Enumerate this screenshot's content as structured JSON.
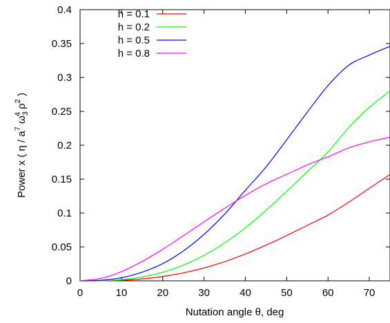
{
  "chart_data": {
    "type": "line",
    "title": "",
    "xlabel": "Nutation angle θ, deg",
    "ylabel_parts": {
      "prefix": "Power x ( η / a",
      "sup1": "7",
      "omega": " ω",
      "sub": "3",
      "sup2": "4",
      "rho": " ρ",
      "sup3": "2",
      "suffix": " )"
    },
    "xlim": [
      0,
      75
    ],
    "ylim": [
      0,
      0.4
    ],
    "xticks": [
      "0",
      "10",
      "20",
      "30",
      "40",
      "50",
      "60",
      "70"
    ],
    "yticks": [
      "0",
      "0.05",
      "0.1",
      "0.15",
      "0.2",
      "0.25",
      "0.3",
      "0.35",
      "0.4"
    ],
    "legend_position": "top-left",
    "grid": false,
    "x": [
      0,
      5,
      10,
      15,
      20,
      25,
      30,
      35,
      40,
      45,
      50,
      55,
      60,
      65,
      70,
      75
    ],
    "series": [
      {
        "name": "h = 0.1",
        "color": "#ff0000",
        "values": [
          0,
          0.0001,
          0.0008,
          0.0028,
          0.0064,
          0.0117,
          0.019,
          0.0283,
          0.0396,
          0.0526,
          0.0668,
          0.0819,
          0.097,
          0.1159,
          0.1365,
          0.157
        ]
      },
      {
        "name": "h = 0.2",
        "color": "#00ff00",
        "values": [
          0,
          0.0002,
          0.0018,
          0.0056,
          0.0127,
          0.0232,
          0.0376,
          0.0559,
          0.0781,
          0.104,
          0.132,
          0.161,
          0.19,
          0.226,
          0.256,
          0.28
        ]
      },
      {
        "name": "h = 0.5",
        "color": "#0000ff",
        "values": [
          0,
          0.0008,
          0.0045,
          0.0127,
          0.0253,
          0.0441,
          0.0685,
          0.0985,
          0.1335,
          0.168,
          0.208,
          0.249,
          0.288,
          0.318,
          0.333,
          0.346
        ]
      },
      {
        "name": "h = 0.8",
        "color": "#ff00ff",
        "values": [
          0,
          0.0035,
          0.0135,
          0.0285,
          0.0465,
          0.0665,
          0.087,
          0.107,
          0.126,
          0.143,
          0.157,
          0.171,
          0.183,
          0.196,
          0.205,
          0.212
        ]
      }
    ]
  }
}
